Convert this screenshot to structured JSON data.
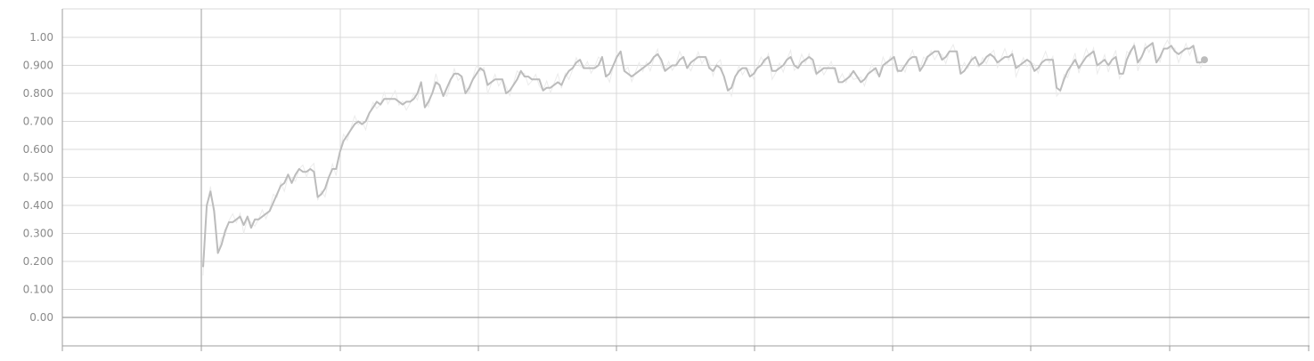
{
  "chart_data": {
    "type": "line",
    "title": "",
    "xlabel": "",
    "ylabel": "",
    "ylim": [
      -0.1,
      1.1
    ],
    "grid": true,
    "colors": {
      "smoothed": "#bcbcbc",
      "raw": "#e8e8e8",
      "axis": "#9e9e9e",
      "grid": "#d9d9d9",
      "label": "#8a8a8a"
    },
    "y_ticks": [
      "0.00",
      "0.100",
      "0.200",
      "0.300",
      "0.400",
      "0.500",
      "0.600",
      "0.700",
      "0.800",
      "0.900",
      "1.00"
    ],
    "y_tick_values": [
      0,
      0.1,
      0.2,
      0.3,
      0.4,
      0.5,
      0.6,
      0.7,
      0.8,
      0.9,
      1.0
    ],
    "series": [
      {
        "values": [
          0.18,
          0.4,
          0.45,
          0.38,
          0.23,
          0.26,
          0.31,
          0.34,
          0.34,
          0.35,
          0.36,
          0.33,
          0.36,
          0.32,
          0.35,
          0.35,
          0.36,
          0.37,
          0.38,
          0.41,
          0.44,
          0.47,
          0.48,
          0.51,
          0.48,
          0.51,
          0.53,
          0.52,
          0.52,
          0.53,
          0.52,
          0.43,
          0.44,
          0.46,
          0.5,
          0.53,
          0.53,
          0.59,
          0.63,
          0.65,
          0.67,
          0.69,
          0.7,
          0.69,
          0.7,
          0.73,
          0.75,
          0.77,
          0.76,
          0.78,
          0.78,
          0.78,
          0.78,
          0.77,
          0.76,
          0.77,
          0.77,
          0.78,
          0.8,
          0.84,
          0.75,
          0.77,
          0.8,
          0.84,
          0.83,
          0.79,
          0.82,
          0.85,
          0.87,
          0.87,
          0.86,
          0.8,
          0.82,
          0.85,
          0.87,
          0.89,
          0.88,
          0.83,
          0.84,
          0.85,
          0.85,
          0.85,
          0.8,
          0.81,
          0.83,
          0.85,
          0.88,
          0.86,
          0.86,
          0.85,
          0.85,
          0.85,
          0.81,
          0.82,
          0.82,
          0.83,
          0.84,
          0.83,
          0.86,
          0.88,
          0.89,
          0.91,
          0.92,
          0.89,
          0.89,
          0.89,
          0.89,
          0.9,
          0.93,
          0.86,
          0.87,
          0.9,
          0.93,
          0.95,
          0.88,
          0.87,
          0.86,
          0.87,
          0.88,
          0.89,
          0.9,
          0.91,
          0.93,
          0.94,
          0.92,
          0.88,
          0.89,
          0.9,
          0.9,
          0.92,
          0.93,
          0.89,
          0.91,
          0.92,
          0.93,
          0.93,
          0.93,
          0.89,
          0.88,
          0.9,
          0.89,
          0.86,
          0.81,
          0.82,
          0.86,
          0.88,
          0.89,
          0.89,
          0.86,
          0.87,
          0.89,
          0.9,
          0.92,
          0.93,
          0.88,
          0.88,
          0.89,
          0.9,
          0.92,
          0.93,
          0.9,
          0.89,
          0.91,
          0.92,
          0.93,
          0.92,
          0.87,
          0.88,
          0.89,
          0.89,
          0.89,
          0.89,
          0.84,
          0.84,
          0.85,
          0.86,
          0.88,
          0.86,
          0.84,
          0.85,
          0.87,
          0.88,
          0.89,
          0.86,
          0.9,
          0.91,
          0.92,
          0.93,
          0.88,
          0.88,
          0.9,
          0.92,
          0.93,
          0.93,
          0.88,
          0.9,
          0.93,
          0.94,
          0.95,
          0.95,
          0.92,
          0.93,
          0.95,
          0.95,
          0.95,
          0.87,
          0.88,
          0.9,
          0.92,
          0.93,
          0.9,
          0.91,
          0.93,
          0.94,
          0.93,
          0.91,
          0.92,
          0.93,
          0.93,
          0.94,
          0.89,
          0.9,
          0.91,
          0.92,
          0.91,
          0.88,
          0.89,
          0.91,
          0.92,
          0.92,
          0.92,
          0.82,
          0.81,
          0.85,
          0.88,
          0.9,
          0.92,
          0.89,
          0.91,
          0.93,
          0.94,
          0.95,
          0.9,
          0.91,
          0.92,
          0.9,
          0.92,
          0.93,
          0.87,
          0.87,
          0.92,
          0.95,
          0.97,
          0.91,
          0.93,
          0.96,
          0.97,
          0.98,
          0.91,
          0.93,
          0.96,
          0.96,
          0.97,
          0.95,
          0.94,
          0.95,
          0.96,
          0.96,
          0.97,
          0.91,
          0.91,
          0.92
        ]
      }
    ]
  }
}
